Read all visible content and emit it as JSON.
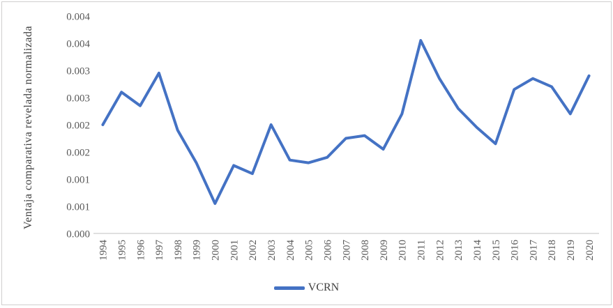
{
  "chart_data": {
    "type": "line",
    "title": "",
    "xlabel": "",
    "ylabel": "Ventaja comparativa revelada normalizada",
    "categories": [
      1994,
      1995,
      1996,
      1997,
      1998,
      1999,
      2000,
      2001,
      2002,
      2003,
      2004,
      2005,
      2006,
      2007,
      2008,
      2009,
      2010,
      2011,
      2012,
      2013,
      2014,
      2015,
      2016,
      2017,
      2018,
      2019,
      2020
    ],
    "series": [
      {
        "name": "VCRN",
        "color": "#4472C4",
        "values": [
          0.002,
          0.0026,
          0.00235,
          0.00295,
          0.0019,
          0.0013,
          0.00055,
          0.00125,
          0.0011,
          0.002,
          0.00135,
          0.0013,
          0.0014,
          0.00175,
          0.0018,
          0.00155,
          0.0022,
          0.00355,
          0.00285,
          0.0023,
          0.00195,
          0.00165,
          0.00265,
          0.00285,
          0.0027,
          0.0022,
          0.0029
        ]
      }
    ],
    "ylim": [
      0,
      0.004
    ],
    "y_tick_values": [
      0.004,
      0.0035,
      0.003,
      0.0025,
      0.002,
      0.0015,
      0.001,
      0.0005,
      0.0
    ],
    "y_tick_labels": [
      "0.004",
      "0.004",
      "0.003",
      "0.003",
      "0.002",
      "0.002",
      "0.001",
      "0.001",
      "0.000"
    ],
    "grid": "off",
    "legend_position": "bottom-center"
  },
  "colors": {
    "series_line": "#4472C4",
    "axis_line": "#d6d6d6",
    "tick_text": "#595959",
    "title_text": "#404040",
    "frame_border": "#d0cece"
  }
}
